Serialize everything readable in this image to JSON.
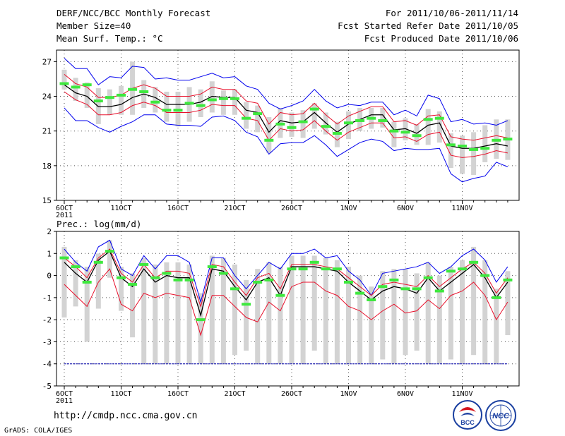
{
  "header": {
    "title": "DERF/NCC/BCC Monthly Forecast",
    "member_size": "Member Size=40",
    "variable": "Mean Surf. Temp.: °C",
    "period": "For 2011/10/06-2011/11/14",
    "start_date": "Fcst Started Refer Date 2011/10/05",
    "produced_date": "Fcst Produced Date 2011/10/06"
  },
  "precip_label": "Prec.: log(mm/d)",
  "footer": {
    "url": "http://cmdp.ncc.cma.gov.cn",
    "credit": "GrADS: COLA/IGES",
    "logo_bcc": "BCC",
    "logo_ncc": "NCC"
  },
  "colors": {
    "box": "#d3d3d3",
    "mean": "#000000",
    "inner_band": "#e8102b",
    "outer_band": "#0000ee",
    "obs": "#3ee83e",
    "grid": "#555555"
  },
  "chart_data": [
    {
      "type": "line",
      "name": "temperature",
      "ylabel": "Mean Surf. Temp.: °C",
      "ylim": [
        15,
        28
      ],
      "yticks": [
        15,
        18,
        21,
        24,
        27
      ],
      "x_tick_labels": [
        "6OCT",
        "11OCT",
        "16OCT",
        "21OCT",
        "26OCT",
        "1NOV",
        "6NOV",
        "11NOV"
      ],
      "x_year_label": "2011",
      "days": 40,
      "mean": [
        25.0,
        24.3,
        24.0,
        23.1,
        23.1,
        23.3,
        23.9,
        24.2,
        23.9,
        23.3,
        23.3,
        23.3,
        23.5,
        24.0,
        23.9,
        23.9,
        22.8,
        22.6,
        20.9,
        21.9,
        21.7,
        21.8,
        22.6,
        21.7,
        20.9,
        21.6,
        22.0,
        22.4,
        22.4,
        21.1,
        21.2,
        20.8,
        21.5,
        21.7,
        19.7,
        19.5,
        19.5,
        19.7,
        19.9,
        19.7
      ],
      "inner_upper": [
        25.9,
        25.1,
        24.8,
        23.9,
        23.9,
        24.1,
        24.7,
        25.0,
        24.7,
        24.0,
        24.0,
        24.0,
        24.2,
        24.8,
        24.6,
        24.6,
        23.6,
        23.4,
        21.6,
        22.6,
        22.4,
        22.5,
        23.4,
        22.4,
        21.6,
        22.3,
        22.7,
        23.1,
        23.1,
        21.8,
        21.9,
        21.5,
        22.3,
        22.4,
        20.5,
        20.3,
        20.2,
        20.4,
        20.6,
        20.4
      ],
      "inner_lower": [
        24.4,
        23.7,
        23.3,
        22.4,
        22.4,
        22.6,
        23.2,
        23.5,
        23.2,
        22.6,
        22.6,
        22.6,
        22.8,
        23.3,
        23.2,
        23.2,
        22.1,
        21.9,
        20.2,
        21.2,
        21.0,
        21.1,
        21.9,
        21.0,
        20.2,
        20.9,
        21.3,
        21.7,
        21.7,
        20.4,
        20.5,
        20.1,
        20.7,
        20.9,
        18.9,
        18.7,
        18.8,
        19.0,
        19.3,
        19.1
      ],
      "outer_upper": [
        27.3,
        26.4,
        26.4,
        25.0,
        25.7,
        25.6,
        26.6,
        26.5,
        25.5,
        25.6,
        25.4,
        25.4,
        25.7,
        26.0,
        25.6,
        25.7,
        24.9,
        24.6,
        23.4,
        22.9,
        23.2,
        23.6,
        24.6,
        23.6,
        23.0,
        23.3,
        23.2,
        23.5,
        23.5,
        22.4,
        22.8,
        22.3,
        24.1,
        23.8,
        21.8,
        22.0,
        21.6,
        21.7,
        21.5,
        21.9
      ],
      "outer_lower": [
        23.0,
        21.9,
        21.9,
        21.3,
        20.9,
        21.4,
        21.8,
        22.4,
        22.4,
        21.6,
        21.5,
        21.5,
        21.4,
        22.2,
        22.3,
        21.9,
        20.9,
        20.5,
        19.0,
        19.9,
        20.0,
        20.0,
        20.6,
        19.8,
        18.8,
        19.4,
        20.0,
        20.3,
        20.1,
        19.3,
        19.5,
        19.4,
        19.4,
        19.5,
        17.3,
        16.6,
        16.9,
        17.1,
        18.3,
        17.9
      ],
      "box_high": [
        26.3,
        25.6,
        25.2,
        24.7,
        24.6,
        24.9,
        27.0,
        25.4,
        24.8,
        24.4,
        24.4,
        24.8,
        24.6,
        25.3,
        24.5,
        24.6,
        23.5,
        23.2,
        22.2,
        23.0,
        22.6,
        22.8,
        23.4,
        22.6,
        21.8,
        22.7,
        23.0,
        23.0,
        23.0,
        21.8,
        22.1,
        21.6,
        22.9,
        22.7,
        20.8,
        20.6,
        20.9,
        21.5,
        22.0,
        22.0
      ],
      "box_low": [
        24.6,
        23.6,
        23.0,
        21.6,
        22.4,
        22.4,
        22.4,
        23.0,
        22.6,
        21.8,
        21.4,
        21.8,
        22.2,
        22.6,
        22.4,
        22.4,
        21.2,
        20.9,
        19.1,
        20.4,
        20.5,
        20.4,
        21.2,
        20.7,
        19.6,
        20.3,
        21.0,
        21.2,
        21.3,
        19.6,
        20.2,
        19.8,
        19.8,
        20.0,
        17.8,
        17.3,
        17.2,
        18.3,
        18.6,
        18.5
      ],
      "obs": [
        25.1,
        24.8,
        25.0,
        23.6,
        23.9,
        24.1,
        24.6,
        24.4,
        23.5,
        22.8,
        22.8,
        23.4,
        23.2,
        23.7,
        23.8,
        23.8,
        22.1,
        22.5,
        20.2,
        21.6,
        21.3,
        21.8,
        22.9,
        21.4,
        20.8,
        21.7,
        21.9,
        22.1,
        21.9,
        21.0,
        20.9,
        20.6,
        22.0,
        22.1,
        19.8,
        19.7,
        19.4,
        19.5,
        20.2,
        20.3
      ]
    },
    {
      "type": "line",
      "name": "precipitation",
      "ylabel": "Prec.: log(mm/d)",
      "ylim": [
        -5,
        2
      ],
      "yticks": [
        -5,
        -4,
        -3,
        -2,
        -1,
        0,
        1,
        2
      ],
      "x_tick_labels": [
        "6OCT",
        "11OCT",
        "16OCT",
        "21OCT",
        "26OCT",
        "1NOV",
        "6NOV",
        "11NOV"
      ],
      "x_year_label": "2011",
      "days": 40,
      "baseline": -4,
      "mean": [
        0.6,
        0.1,
        -0.3,
        0.7,
        1.1,
        -0.1,
        -0.5,
        0.3,
        -0.3,
        0.0,
        -0.1,
        -0.1,
        -1.8,
        0.3,
        0.2,
        -0.5,
        -1.1,
        -0.3,
        -0.1,
        -0.9,
        0.4,
        0.4,
        0.4,
        0.3,
        0.2,
        -0.3,
        -0.7,
        -1.1,
        -0.7,
        -0.5,
        -0.6,
        -0.8,
        -0.1,
        -0.7,
        -0.3,
        0.1,
        0.5,
        -0.1,
        -1.0,
        -0.3
      ],
      "inner_upper": [
        0.8,
        0.4,
        -0.1,
        0.8,
        1.2,
        0.1,
        -0.3,
        0.5,
        -0.1,
        0.2,
        0.2,
        0.1,
        -1.4,
        0.5,
        0.4,
        -0.3,
        -0.9,
        -0.1,
        0.1,
        -0.6,
        0.5,
        0.5,
        0.5,
        0.4,
        0.3,
        -0.1,
        -0.5,
        -0.9,
        -0.4,
        -0.3,
        -0.4,
        -0.5,
        0.0,
        -0.5,
        -0.1,
        0.3,
        0.6,
        0.1,
        -0.8,
        -0.1
      ],
      "inner_lower": [
        -0.4,
        -0.9,
        -1.4,
        -0.3,
        0.3,
        -1.3,
        -1.6,
        -0.8,
        -1.0,
        -0.8,
        -0.9,
        -1.0,
        -2.7,
        -0.9,
        -0.9,
        -1.4,
        -1.9,
        -2.1,
        -1.2,
        -1.6,
        -0.5,
        -0.3,
        -0.3,
        -0.7,
        -0.9,
        -1.4,
        -1.6,
        -2.0,
        -1.6,
        -1.3,
        -1.7,
        -1.6,
        -1.1,
        -1.5,
        -0.9,
        -0.7,
        -0.3,
        -0.9,
        -2.0,
        -1.2
      ],
      "outer_upper": [
        1.2,
        0.6,
        0.2,
        1.3,
        1.6,
        0.3,
        0.0,
        0.9,
        0.3,
        0.9,
        0.9,
        0.6,
        -1.2,
        0.8,
        0.8,
        0.0,
        -0.6,
        0.0,
        0.6,
        0.3,
        1.0,
        1.0,
        1.2,
        0.8,
        0.9,
        0.2,
        -0.2,
        -0.9,
        0.1,
        0.2,
        0.3,
        0.4,
        0.6,
        0.1,
        0.4,
        0.9,
        1.2,
        0.7,
        -0.3,
        0.4
      ],
      "box_high": [
        1.3,
        0.7,
        0.4,
        1.0,
        1.6,
        0.4,
        0.1,
        0.8,
        0.5,
        0.6,
        0.6,
        0.5,
        -0.8,
        0.9,
        0.8,
        0.5,
        -0.2,
        0.3,
        0.6,
        0.4,
        0.9,
        0.9,
        0.9,
        0.8,
        0.7,
        0.4,
        0.0,
        -0.5,
        0.2,
        0.3,
        0.3,
        0.1,
        0.6,
        0.0,
        0.4,
        0.7,
        1.3,
        0.7,
        -0.6,
        0.2
      ],
      "box_low": [
        -1.9,
        -1.4,
        -3.0,
        -1.5,
        -0.1,
        -1.6,
        -2.8,
        -4.0,
        -4.0,
        -4.0,
        -4.0,
        -4.0,
        -4.0,
        -4.0,
        -4.0,
        -3.6,
        -3.4,
        -4.0,
        -4.0,
        -4.0,
        -4.0,
        -4.0,
        -3.4,
        -4.0,
        -4.0,
        -4.0,
        -4.0,
        -4.0,
        -3.8,
        -4.0,
        -3.6,
        -3.4,
        -4.0,
        -4.0,
        -3.8,
        -4.0,
        -3.6,
        -4.0,
        -4.0,
        -2.7
      ],
      "obs": [
        0.8,
        0.4,
        -0.3,
        0.6,
        1.1,
        -0.1,
        -0.4,
        0.5,
        -0.1,
        0.1,
        -0.2,
        -0.2,
        -2.0,
        0.4,
        0.1,
        -0.6,
        -1.3,
        -0.3,
        -0.2,
        -0.9,
        0.3,
        0.3,
        0.6,
        0.3,
        0.3,
        -0.3,
        -0.8,
        -1.1,
        -0.5,
        -0.2,
        -0.6,
        -0.6,
        -0.1,
        -0.7,
        0.2,
        0.3,
        0.6,
        0.0,
        -1.0,
        -0.2
      ]
    }
  ]
}
